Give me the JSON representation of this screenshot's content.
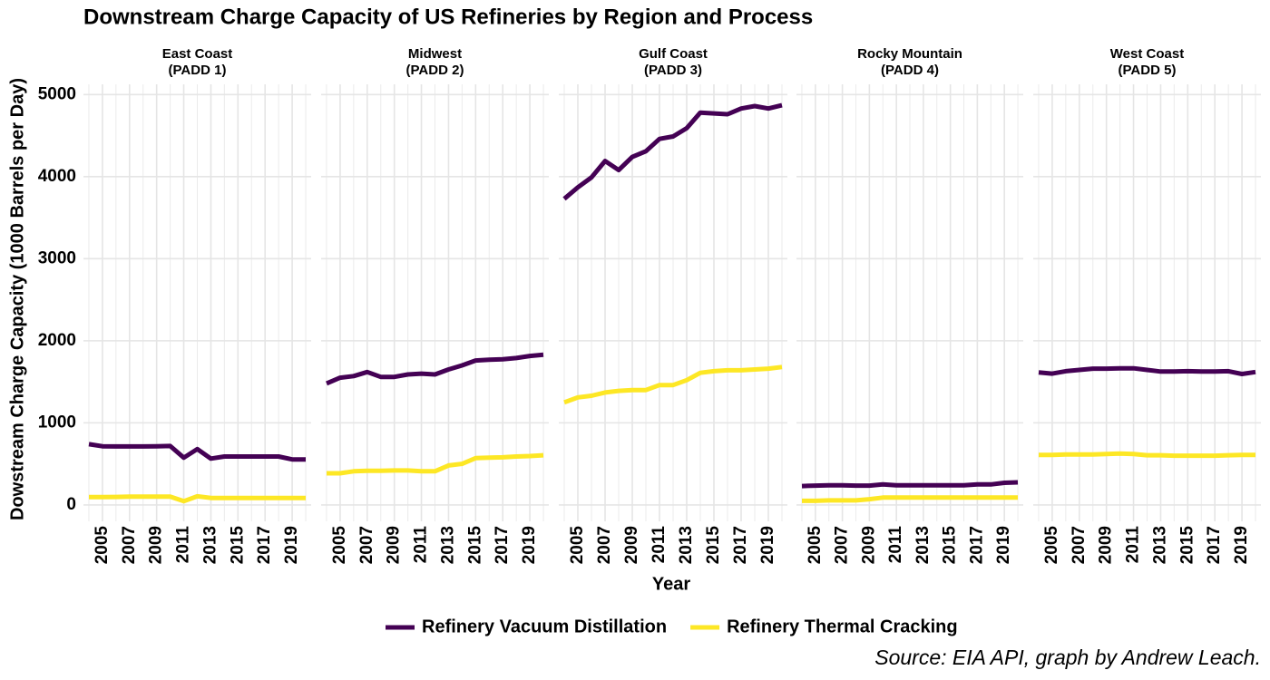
{
  "title": "Downstream Charge Capacity of US Refineries by Region and Process",
  "x_label": "Year",
  "y_label": "Dowstream Charge Capacity (1000 Barrels per Day)",
  "source": "Source: EIA API, graph by Andrew Leach.",
  "chart_data": [
    {
      "type": "line",
      "title": "East Coast",
      "subtitle": "(PADD 1)",
      "x": [
        2004,
        2005,
        2006,
        2007,
        2008,
        2009,
        2010,
        2011,
        2012,
        2013,
        2014,
        2015,
        2016,
        2017,
        2018,
        2019,
        2020
      ],
      "xlim": [
        2003.6,
        2020.4
      ],
      "xticks": [
        2005,
        2007,
        2009,
        2011,
        2013,
        2015,
        2017,
        2019
      ],
      "ylim": [
        -200,
        5125
      ],
      "yticks": [
        0,
        1000,
        2000,
        3000,
        4000,
        5000
      ],
      "grid": true,
      "series": [
        {
          "name": "Refinery Vacuum Distillation",
          "color": "#440154",
          "values": [
            740,
            715,
            712,
            712,
            712,
            715,
            718,
            575,
            680,
            565,
            590,
            590,
            590,
            590,
            590,
            555,
            555
          ]
        },
        {
          "name": "Refinery Thermal Cracking",
          "color": "#fde725",
          "values": [
            95,
            95,
            97,
            100,
            100,
            100,
            100,
            45,
            105,
            85,
            85,
            85,
            85,
            85,
            85,
            85,
            85
          ]
        }
      ]
    },
    {
      "type": "line",
      "title": "Midwest",
      "subtitle": "(PADD 2)",
      "x": [
        2004,
        2005,
        2006,
        2007,
        2008,
        2009,
        2010,
        2011,
        2012,
        2013,
        2014,
        2015,
        2016,
        2017,
        2018,
        2019,
        2020
      ],
      "xlim": [
        2003.6,
        2020.4
      ],
      "xticks": [
        2005,
        2007,
        2009,
        2011,
        2013,
        2015,
        2017,
        2019
      ],
      "ylim": [
        -200,
        5125
      ],
      "yticks": [
        0,
        1000,
        2000,
        3000,
        4000,
        5000
      ],
      "grid": true,
      "series": [
        {
          "name": "Refinery Vacuum Distillation",
          "color": "#440154",
          "values": [
            1480,
            1550,
            1570,
            1620,
            1560,
            1560,
            1590,
            1600,
            1590,
            1650,
            1700,
            1760,
            1770,
            1775,
            1790,
            1815,
            1830
          ]
        },
        {
          "name": "Refinery Thermal Cracking",
          "color": "#fde725",
          "values": [
            385,
            385,
            410,
            415,
            415,
            420,
            420,
            410,
            410,
            480,
            500,
            570,
            575,
            580,
            590,
            595,
            605
          ]
        }
      ]
    },
    {
      "type": "line",
      "title": "Gulf Coast",
      "subtitle": "(PADD 3)",
      "x": [
        2004,
        2005,
        2006,
        2007,
        2008,
        2009,
        2010,
        2011,
        2012,
        2013,
        2014,
        2015,
        2016,
        2017,
        2018,
        2019,
        2020
      ],
      "xlim": [
        2003.6,
        2020.4
      ],
      "xticks": [
        2005,
        2007,
        2009,
        2011,
        2013,
        2015,
        2017,
        2019
      ],
      "ylim": [
        -200,
        5125
      ],
      "yticks": [
        0,
        1000,
        2000,
        3000,
        4000,
        5000
      ],
      "grid": true,
      "series": [
        {
          "name": "Refinery Vacuum Distillation",
          "color": "#440154",
          "values": [
            3730,
            3870,
            3990,
            4190,
            4080,
            4240,
            4310,
            4460,
            4490,
            4590,
            4780,
            4770,
            4760,
            4830,
            4860,
            4830,
            4870
          ]
        },
        {
          "name": "Refinery Thermal Cracking",
          "color": "#fde725",
          "values": [
            1250,
            1310,
            1330,
            1370,
            1390,
            1400,
            1400,
            1460,
            1460,
            1520,
            1610,
            1630,
            1640,
            1640,
            1650,
            1660,
            1680
          ]
        }
      ]
    },
    {
      "type": "line",
      "title": "Rocky Mountain",
      "subtitle": "(PADD 4)",
      "x": [
        2004,
        2005,
        2006,
        2007,
        2008,
        2009,
        2010,
        2011,
        2012,
        2013,
        2014,
        2015,
        2016,
        2017,
        2018,
        2019,
        2020
      ],
      "xlim": [
        2003.6,
        2020.4
      ],
      "xticks": [
        2005,
        2007,
        2009,
        2011,
        2013,
        2015,
        2017,
        2019
      ],
      "ylim": [
        -200,
        5125
      ],
      "yticks": [
        0,
        1000,
        2000,
        3000,
        4000,
        5000
      ],
      "grid": true,
      "series": [
        {
          "name": "Refinery Vacuum Distillation",
          "color": "#440154",
          "values": [
            230,
            235,
            240,
            240,
            235,
            235,
            250,
            240,
            240,
            240,
            240,
            240,
            240,
            250,
            250,
            270,
            275
          ]
        },
        {
          "name": "Refinery Thermal Cracking",
          "color": "#fde725",
          "values": [
            50,
            50,
            55,
            55,
            55,
            70,
            90,
            90,
            90,
            90,
            90,
            90,
            90,
            90,
            90,
            90,
            90
          ]
        }
      ]
    },
    {
      "type": "line",
      "title": "West Coast",
      "subtitle": "(PADD 5)",
      "x": [
        2004,
        2005,
        2006,
        2007,
        2008,
        2009,
        2010,
        2011,
        2012,
        2013,
        2014,
        2015,
        2016,
        2017,
        2018,
        2019,
        2020
      ],
      "xlim": [
        2003.6,
        2020.4
      ],
      "xticks": [
        2005,
        2007,
        2009,
        2011,
        2013,
        2015,
        2017,
        2019
      ],
      "ylim": [
        -200,
        5125
      ],
      "yticks": [
        0,
        1000,
        2000,
        3000,
        4000,
        5000
      ],
      "grid": true,
      "series": [
        {
          "name": "Refinery Vacuum Distillation",
          "color": "#440154",
          "values": [
            1615,
            1600,
            1630,
            1645,
            1660,
            1660,
            1665,
            1665,
            1645,
            1625,
            1625,
            1630,
            1625,
            1625,
            1630,
            1595,
            1620
          ]
        },
        {
          "name": "Refinery Thermal Cracking",
          "color": "#fde725",
          "values": [
            610,
            610,
            615,
            615,
            615,
            620,
            625,
            620,
            605,
            605,
            600,
            600,
            600,
            600,
            605,
            610,
            610
          ]
        }
      ]
    }
  ]
}
